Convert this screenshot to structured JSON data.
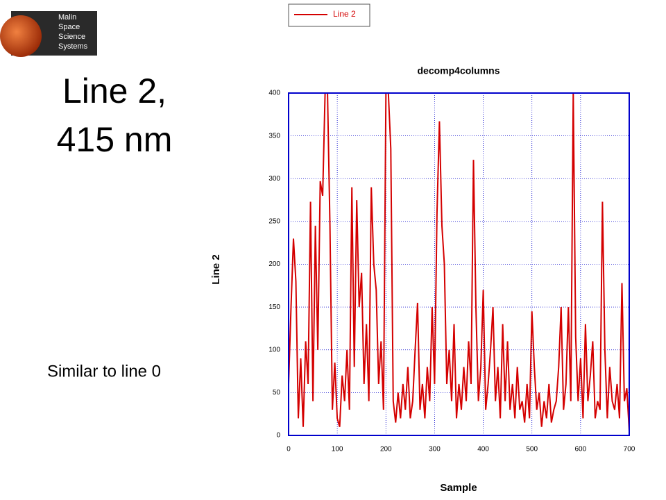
{
  "logo": [
    "Malin",
    "Space",
    "Science",
    "Systems"
  ],
  "heading": [
    "Line 2,",
    "415 nm"
  ],
  "note": "Similar to line 0",
  "chart_data": {
    "type": "line",
    "title": "decomp4columns",
    "x_label": "Sample",
    "y_label": "Line 2",
    "legend": "top",
    "grid": true,
    "x": [
      0,
      5,
      10,
      15,
      20,
      25,
      30,
      35,
      40,
      45,
      50,
      55,
      60,
      65,
      70,
      75,
      80,
      85,
      90,
      95,
      100,
      105,
      110,
      115,
      120,
      125,
      130,
      135,
      140,
      145,
      150,
      155,
      160,
      165,
      170,
      175,
      180,
      185,
      190,
      195,
      200,
      205,
      210,
      215,
      220,
      225,
      230,
      235,
      240,
      245,
      250,
      255,
      260,
      265,
      270,
      275,
      280,
      285,
      290,
      295,
      300,
      305,
      310,
      315,
      320,
      325,
      330,
      335,
      340,
      345,
      350,
      355,
      360,
      365,
      370,
      375,
      380,
      385,
      390,
      395,
      400,
      405,
      410,
      415,
      420,
      425,
      430,
      435,
      440,
      445,
      450,
      455,
      460,
      465,
      470,
      475,
      480,
      485,
      490,
      495,
      500,
      505,
      510,
      515,
      520,
      525,
      530,
      535,
      540,
      545,
      550,
      555,
      560,
      565,
      570,
      575,
      580,
      585,
      590,
      595,
      600,
      605,
      610,
      615,
      620,
      625,
      630,
      635,
      640,
      645,
      650,
      655,
      660,
      665,
      670,
      675,
      680,
      685,
      690,
      695,
      700
    ],
    "series": [
      {
        "name": "Line 2",
        "color": "#d40000",
        "values": [
          60,
          150,
          230,
          180,
          20,
          90,
          10,
          110,
          60,
          273,
          40,
          245,
          100,
          297,
          280,
          400,
          400,
          245,
          30,
          85,
          20,
          10,
          70,
          40,
          100,
          30,
          290,
          80,
          275,
          150,
          190,
          60,
          130,
          40,
          290,
          200,
          170,
          60,
          110,
          30,
          400,
          400,
          335,
          40,
          15,
          50,
          20,
          60,
          30,
          80,
          20,
          40,
          100,
          155,
          30,
          60,
          20,
          80,
          40,
          150,
          60,
          260,
          367,
          245,
          200,
          60,
          100,
          40,
          130,
          20,
          60,
          30,
          80,
          40,
          110,
          60,
          322,
          150,
          40,
          80,
          170,
          30,
          60,
          100,
          150,
          40,
          80,
          20,
          130,
          40,
          110,
          30,
          60,
          20,
          80,
          30,
          40,
          15,
          60,
          20,
          145,
          80,
          30,
          50,
          10,
          40,
          20,
          60,
          15,
          30,
          40,
          80,
          150,
          30,
          60,
          150,
          40,
          400,
          115,
          40,
          90,
          20,
          130,
          40,
          70,
          110,
          20,
          40,
          30,
          273,
          100,
          20,
          80,
          40,
          30,
          60,
          20,
          178,
          40,
          55,
          5
        ]
      }
    ],
    "xlim": [
      0,
      700
    ],
    "xticks": [
      0,
      100,
      200,
      300,
      400,
      500,
      600,
      700
    ],
    "ylim": [
      0,
      400
    ],
    "yticks": [
      0,
      50,
      100,
      150,
      200,
      250,
      300,
      350,
      400
    ]
  }
}
